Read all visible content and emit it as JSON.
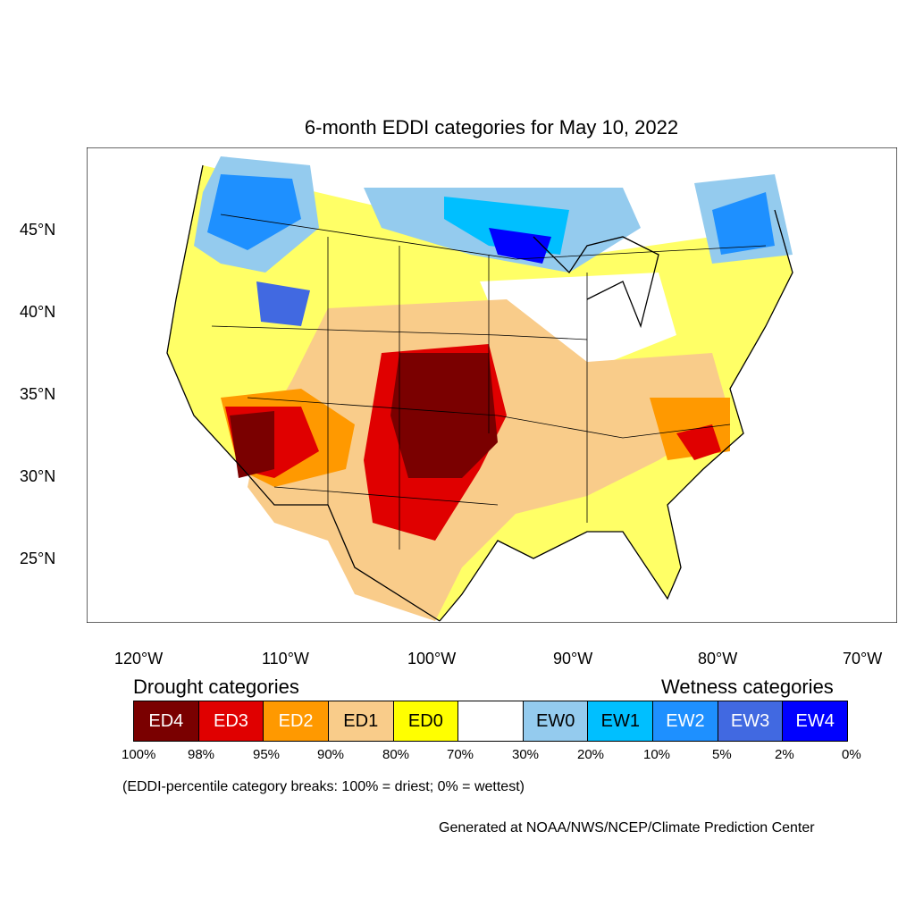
{
  "title": "6-month EDDI categories for May 10, 2022",
  "lat_labels": [
    "45°N",
    "40°N",
    "35°N",
    "30°N",
    "25°N"
  ],
  "lon_labels": [
    "120°W",
    "110°W",
    "100°W",
    "90°W",
    "80°W",
    "70°W"
  ],
  "drought_heading": "Drought categories",
  "wetness_heading": "Wetness categories",
  "legend": [
    {
      "label": "ED4",
      "color": "#7a0000",
      "text_color": "#ffffff"
    },
    {
      "label": "ED3",
      "color": "#e00000",
      "text_color": "#ffffff"
    },
    {
      "label": "ED2",
      "color": "#ff9900",
      "text_color": "#ffffff"
    },
    {
      "label": "ED1",
      "color": "#f9cc8a",
      "text_color": "#000000"
    },
    {
      "label": "ED0",
      "color": "#ffff00",
      "text_color": "#000000"
    },
    {
      "label": "",
      "color": "#ffffff",
      "text_color": "#000000"
    },
    {
      "label": "EW0",
      "color": "#94cbee",
      "text_color": "#000000"
    },
    {
      "label": "EW1",
      "color": "#00bfff",
      "text_color": "#000000"
    },
    {
      "label": "EW2",
      "color": "#1e90ff",
      "text_color": "#ffffff"
    },
    {
      "label": "EW3",
      "color": "#4169e1",
      "text_color": "#ffffff"
    },
    {
      "label": "EW4",
      "color": "#0000ff",
      "text_color": "#ffffff"
    }
  ],
  "percent_breaks": [
    "100%",
    "98%",
    "95%",
    "90%",
    "80%",
    "70%",
    "30%",
    "20%",
    "10%",
    "5%",
    "2%",
    "0%"
  ],
  "note": "(EDDI-percentile category breaks: 100% = driest; 0% = wettest)",
  "credit": "Generated at NOAA/NWS/NCEP/Climate Prediction Center"
}
